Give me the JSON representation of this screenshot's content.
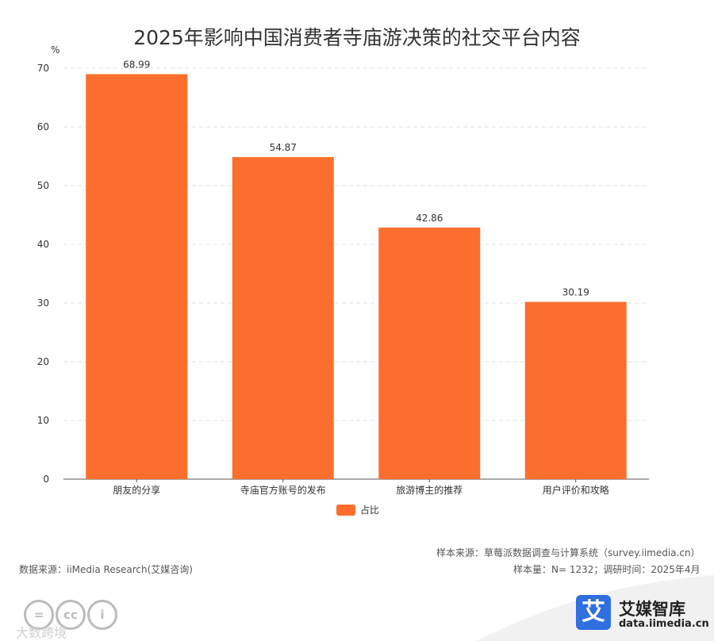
{
  "chart_data": {
    "type": "bar",
    "title": "2025年影响中国消费者寺庙游决策的社交平台内容",
    "ylabel": "%",
    "xlabel": "",
    "ylim": [
      0,
      70
    ],
    "yticks": [
      0,
      10,
      20,
      30,
      40,
      50,
      60,
      70
    ],
    "grid": true,
    "categories": [
      "朋友的分享",
      "寺庙官方账号的发布",
      "旅游博主的推荐",
      "用户评价和攻略"
    ],
    "series": [
      {
        "name": "占比",
        "values": [
          68.99,
          54.87,
          42.86,
          30.19
        ]
      }
    ],
    "value_labels": [
      "68.99",
      "54.87",
      "42.86",
      "30.19"
    ],
    "legend_position": "bottom-center"
  },
  "colors": {
    "bar": "#fc6e2d",
    "grid": "#d9e1e8",
    "axis": "#555555",
    "brand_blue": "#2f6fe0"
  },
  "footer": {
    "sample_source": "样本来源：草莓派数据调查与计算系统（survey.iimedia.cn）",
    "data_source": "数据来源：iiMedia Research(艾媒咨询)",
    "sample_info": "样本量：N= 1232；调研时间：2025年4月"
  },
  "brand": {
    "logo_char": "艾",
    "name": "艾媒智库",
    "url": "data.iimedia.cn"
  },
  "license_icons": [
    "=",
    "cc",
    "i"
  ],
  "watermark": "大数跨境"
}
